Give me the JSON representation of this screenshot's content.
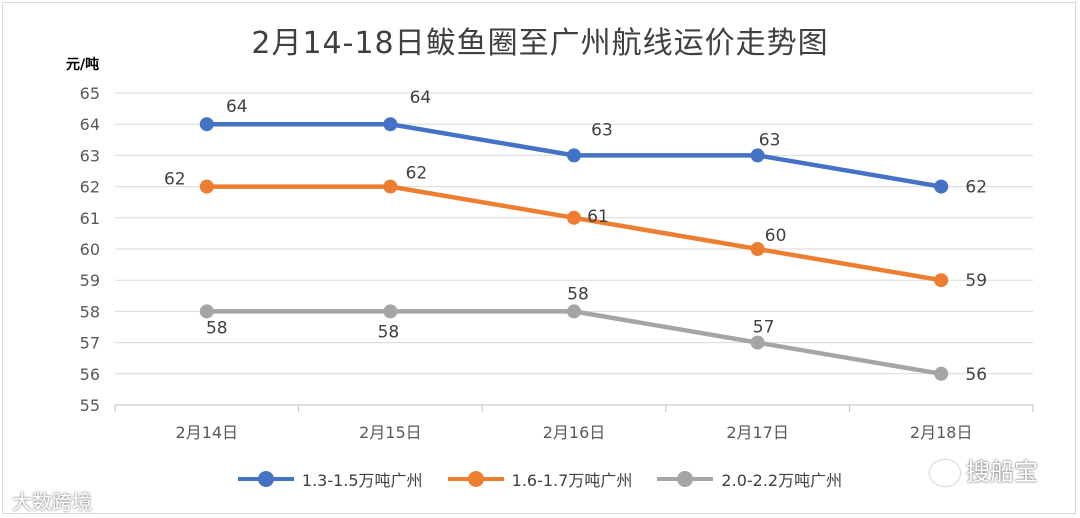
{
  "chart_data": {
    "type": "line",
    "title": "2月14-18日鲅鱼圈至广州航线运价走势图",
    "ylabel": "元/吨",
    "xlabel": "",
    "categories": [
      "2月14日",
      "2月15日",
      "2月16日",
      "2月17日",
      "2月18日"
    ],
    "ylim": [
      55,
      65
    ],
    "yticks": [
      55,
      56,
      57,
      58,
      59,
      60,
      61,
      62,
      63,
      64,
      65
    ],
    "grid": true,
    "legend_position": "bottom",
    "series": [
      {
        "name": "1.3-1.5万吨广州",
        "values": [
          64,
          64,
          63,
          63,
          62
        ],
        "color": "#4472c4"
      },
      {
        "name": "1.6-1.7万吨广州",
        "values": [
          62,
          62,
          61,
          60,
          59
        ],
        "color": "#ed7d31"
      },
      {
        "name": "2.0-2.2万吨广州",
        "values": [
          58,
          58,
          58,
          57,
          56
        ],
        "color": "#a5a5a5"
      }
    ]
  },
  "watermarks": {
    "left": "大数跨境",
    "right": "搜船宝"
  }
}
